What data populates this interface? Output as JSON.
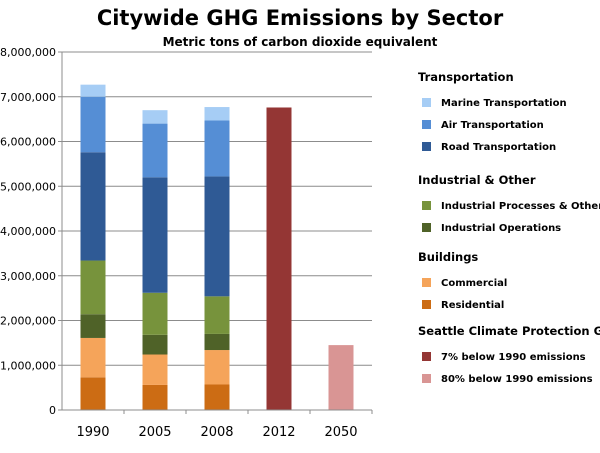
{
  "chart_data": {
    "type": "bar",
    "stacked": true,
    "title": "Citywide GHG Emissions by Sector",
    "subtitle": "Metric tons of carbon dioxide equivalent",
    "xlabel": "",
    "ylabel": "",
    "categories": [
      "1990",
      "2005",
      "2008",
      "2012",
      "2050"
    ],
    "ylim": [
      0,
      8000000
    ],
    "yticks": [
      0,
      1000000,
      2000000,
      3000000,
      4000000,
      5000000,
      6000000,
      7000000,
      8000000
    ],
    "ytick_labels": [
      "0",
      "1,000,000",
      "2,000,000",
      "3,000,000",
      "4,000,000",
      "5,000,000",
      "6,000,000",
      "7,000,000",
      "8,000,000"
    ],
    "grid": true,
    "legend_position": "right",
    "series": [
      {
        "name": "Residential",
        "color": "#cc6c14",
        "values": [
          730000,
          560000,
          570000,
          0,
          0
        ]
      },
      {
        "name": "Commercial",
        "color": "#f5a45a",
        "values": [
          880000,
          680000,
          770000,
          0,
          0
        ]
      },
      {
        "name": "Industrial Operations",
        "color": "#4f6228",
        "values": [
          530000,
          440000,
          360000,
          0,
          0
        ]
      },
      {
        "name": "Industrial Processes & Other",
        "color": "#77933c",
        "values": [
          1200000,
          940000,
          840000,
          0,
          0
        ]
      },
      {
        "name": "Road Transportation",
        "color": "#2f5a95",
        "values": [
          2420000,
          2580000,
          2680000,
          0,
          0
        ]
      },
      {
        "name": "Air Transportation",
        "color": "#558ed5",
        "values": [
          1240000,
          1200000,
          1250000,
          0,
          0
        ]
      },
      {
        "name": "Marine Transportation",
        "color": "#a6cdf5",
        "values": [
          270000,
          300000,
          300000,
          0,
          0
        ]
      },
      {
        "name": "7% below 1990 emissions",
        "color": "#943634",
        "values": [
          0,
          0,
          0,
          6760000,
          0
        ]
      },
      {
        "name": "80% below 1990 emissions",
        "color": "#d99594",
        "values": [
          0,
          0,
          0,
          0,
          1450000
        ]
      }
    ],
    "legend": [
      {
        "heading": "Transportation",
        "items": [
          {
            "label": "Marine Transportation",
            "color": "#a6cdf5"
          },
          {
            "label": "Air Transportation",
            "color": "#558ed5"
          },
          {
            "label": "Road Transportation",
            "color": "#2f5a95"
          }
        ]
      },
      {
        "heading": "Industrial & Other",
        "items": [
          {
            "label": "Industrial Processes & Other",
            "color": "#77933c"
          },
          {
            "label": "Industrial Operations",
            "color": "#4f6228"
          }
        ]
      },
      {
        "heading": "Buildings",
        "items": [
          {
            "label": "Commercial",
            "color": "#f5a45a"
          },
          {
            "label": "Residential",
            "color": "#cc6c14"
          }
        ]
      },
      {
        "heading": "Seattle Climate Protection Goals",
        "items": [
          {
            "label": "7% below 1990 emissions",
            "color": "#943634"
          },
          {
            "label": "80% below 1990 emissions",
            "color": "#d99594"
          }
        ]
      }
    ]
  }
}
